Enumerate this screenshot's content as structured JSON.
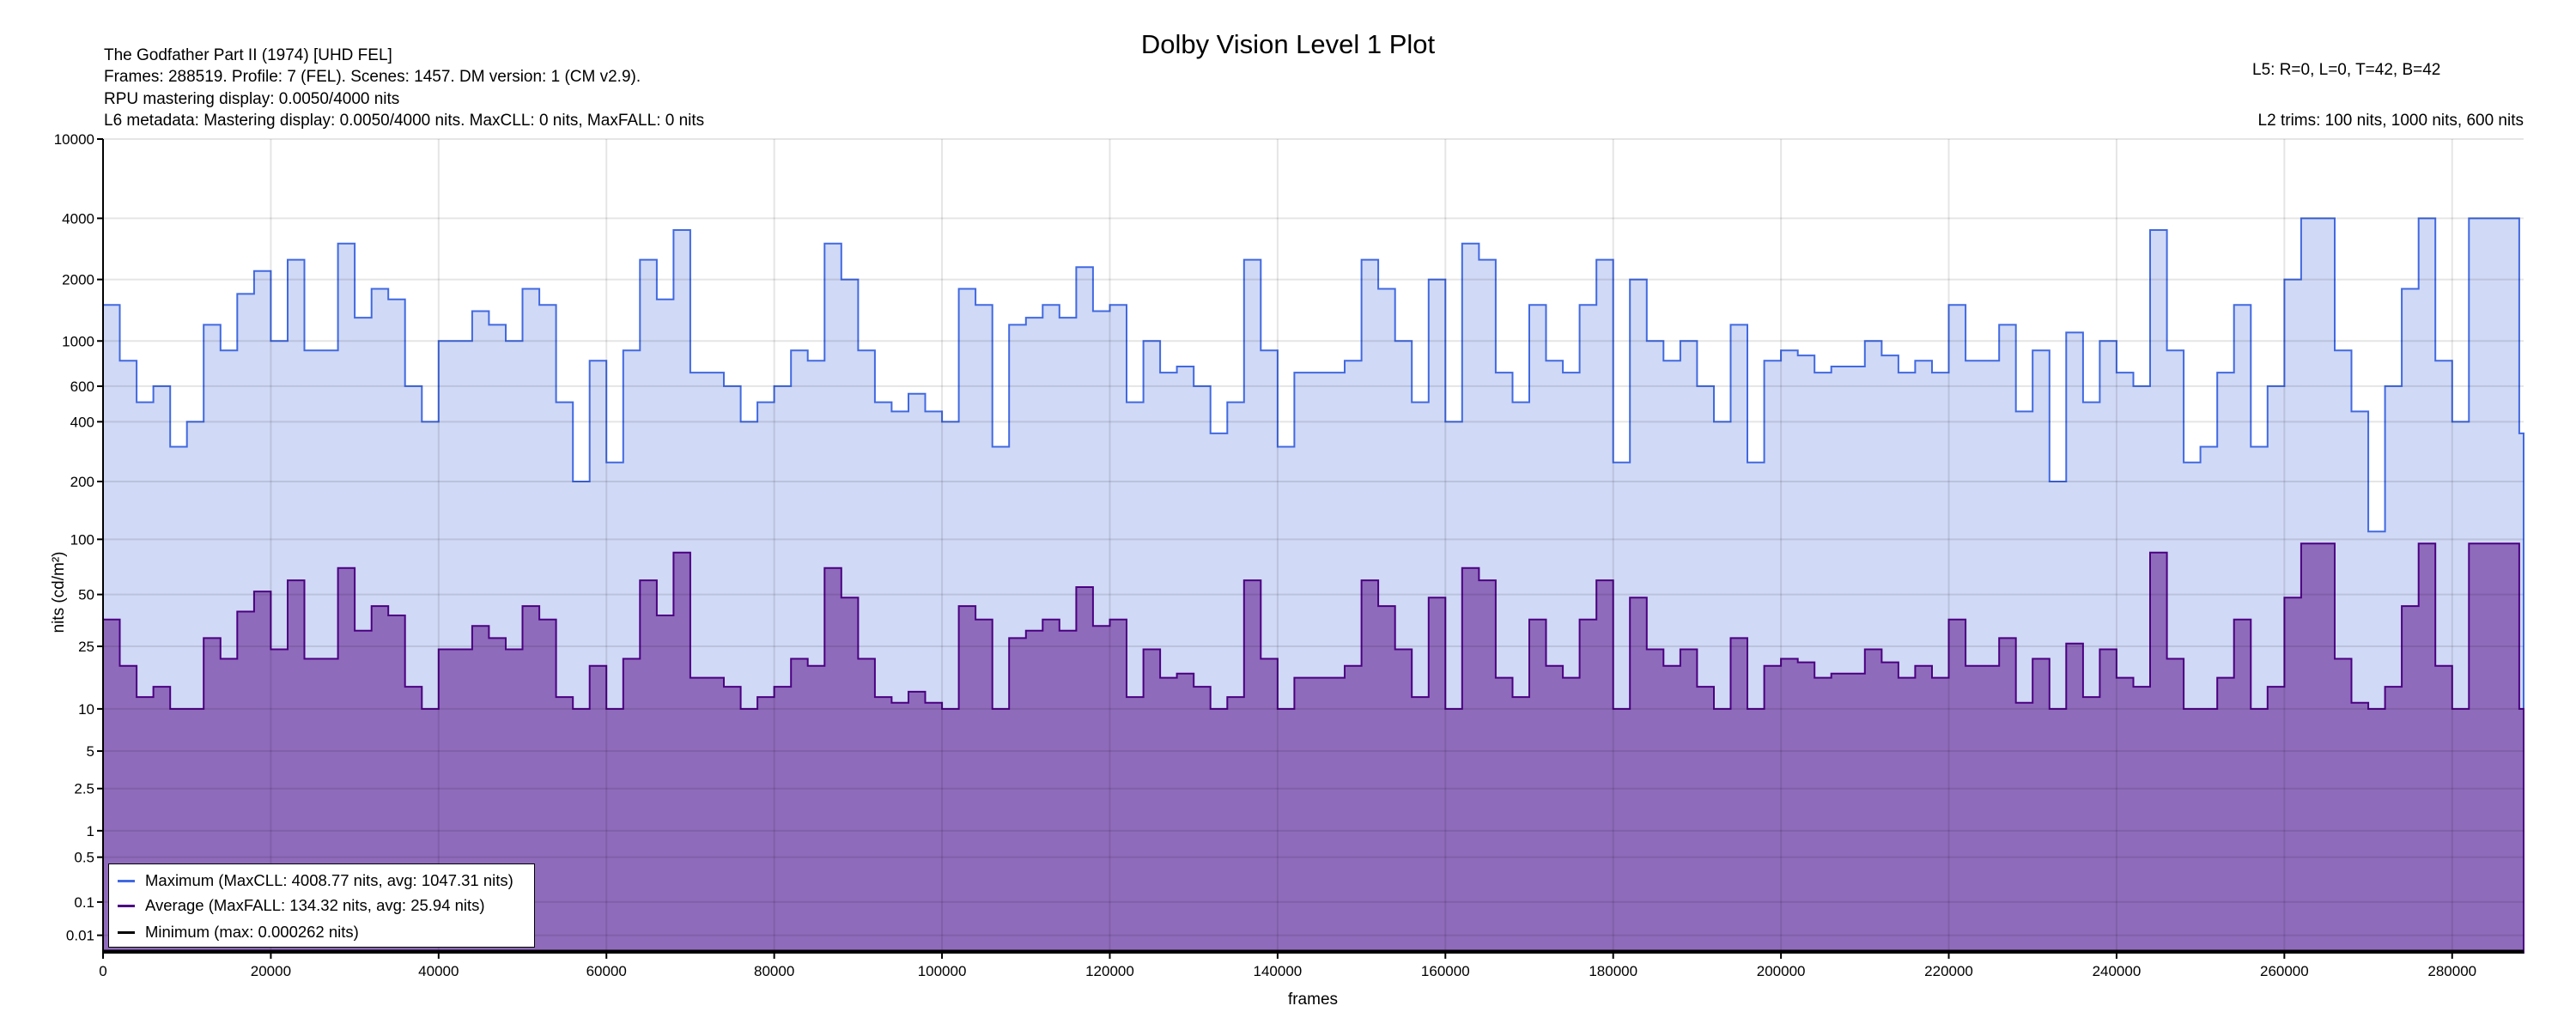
{
  "header": {
    "title": "Dolby Vision Level 1 Plot",
    "info_lines": [
      "The Godfather Part II (1974) [UHD FEL]",
      "Frames: 288519. Profile: 7 (FEL). Scenes: 1457. DM version: 1 (CM v2.9).",
      "RPU mastering display: 0.0050/4000 nits",
      "L6 metadata: Mastering display: 0.0050/4000 nits. MaxCLL: 0 nits, MaxFALL: 0 nits"
    ],
    "l5": "L5: R=0, L=0, T=42, B=42",
    "l2": "L2 trims: 100 nits, 1000 nits, 600 nits"
  },
  "chart_data": {
    "type": "area",
    "title": "Dolby Vision Level 1 Plot",
    "xlabel": "frames",
    "ylabel": "nits (cd/m²)",
    "y_scale": "PQ",
    "xlim": [
      0,
      288519
    ],
    "ylim": [
      0,
      10000
    ],
    "grid": true,
    "legend_position": "bottom-left",
    "x_ticks": [
      "0",
      "20000",
      "40000",
      "60000",
      "80000",
      "100000",
      "120000",
      "140000",
      "160000",
      "180000",
      "200000",
      "220000",
      "240000",
      "260000",
      "280000"
    ],
    "y_ticks": [
      "0.01",
      "0.1",
      "0.5",
      "1",
      "2.5",
      "5",
      "10",
      "25",
      "50",
      "100",
      "200",
      "400",
      "600",
      "1000",
      "2000",
      "4000",
      "10000"
    ],
    "bin_size_frames": 2000,
    "series": [
      {
        "name": "Maximum",
        "legend": "Maximum (MaxCLL: 4008.77 nits, avg: 1047.31 nits)",
        "color": "#4169e1",
        "fill": "#d0d9f5",
        "values": [
          1500,
          800,
          500,
          600,
          300,
          400,
          1200,
          900,
          1700,
          2200,
          1000,
          2500,
          900,
          900,
          3000,
          1300,
          1800,
          1600,
          600,
          400,
          1000,
          1000,
          1400,
          1200,
          1000,
          1800,
          1500,
          500,
          200,
          800,
          250,
          900,
          2500,
          1600,
          3500,
          700,
          700,
          600,
          400,
          500,
          600,
          900,
          800,
          3000,
          2000,
          900,
          500,
          450,
          550,
          450,
          400,
          1800,
          1500,
          300,
          1200,
          1300,
          1500,
          1300,
          2300,
          1400,
          1500,
          500,
          1000,
          700,
          750,
          600,
          350,
          500,
          2500,
          900,
          300,
          700,
          700,
          700,
          800,
          2500,
          1800,
          1000,
          500,
          2000,
          400,
          3000,
          2500,
          700,
          500,
          1500,
          800,
          700,
          1500,
          2500,
          250,
          2000,
          1000,
          800,
          1000,
          600,
          400,
          1200,
          250,
          800,
          900,
          850,
          700,
          750,
          750,
          1000,
          850,
          700,
          800,
          700,
          1500,
          800,
          800,
          1200,
          450,
          900,
          200,
          1100,
          500,
          1000,
          700,
          600,
          3500,
          900,
          250,
          300,
          700,
          1500,
          300,
          600,
          2000,
          4000,
          4000,
          900,
          450,
          110,
          600,
          1800,
          4000,
          800,
          400,
          4000,
          4000,
          4000,
          350
        ]
      },
      {
        "name": "Average",
        "legend": "Average (MaxFALL: 134.32 nits, avg: 25.94 nits)",
        "color": "#4b0082",
        "fill": "#8f6bbb",
        "values": [
          36,
          19,
          12,
          14,
          10,
          10,
          28,
          21,
          40,
          52,
          24,
          60,
          21,
          21,
          70,
          31,
          43,
          38,
          14,
          10,
          24,
          24,
          33,
          28,
          24,
          43,
          36,
          12,
          10,
          19,
          10,
          21,
          60,
          38,
          85,
          16,
          16,
          14,
          10,
          12,
          14,
          21,
          19,
          70,
          48,
          21,
          12,
          11,
          13,
          11,
          10,
          43,
          36,
          10,
          28,
          31,
          36,
          31,
          55,
          33,
          36,
          12,
          24,
          16,
          17,
          14,
          10,
          12,
          60,
          21,
          10,
          16,
          16,
          16,
          19,
          60,
          43,
          24,
          12,
          48,
          10,
          70,
          60,
          16,
          12,
          36,
          19,
          16,
          36,
          60,
          10,
          48,
          24,
          19,
          24,
          14,
          10,
          28,
          10,
          19,
          21,
          20,
          16,
          17,
          17,
          24,
          20,
          16,
          19,
          16,
          36,
          19,
          19,
          28,
          11,
          21,
          10,
          26,
          12,
          24,
          16,
          14,
          85,
          21,
          10,
          10,
          16,
          36,
          10,
          14,
          48,
          95,
          95,
          21,
          11,
          10,
          14,
          43,
          95,
          19,
          10,
          95,
          95,
          95,
          10
        ]
      },
      {
        "name": "Minimum",
        "legend": "Minimum (max: 0.000262 nits)",
        "color": "#000000",
        "values": [
          0
        ]
      }
    ]
  }
}
